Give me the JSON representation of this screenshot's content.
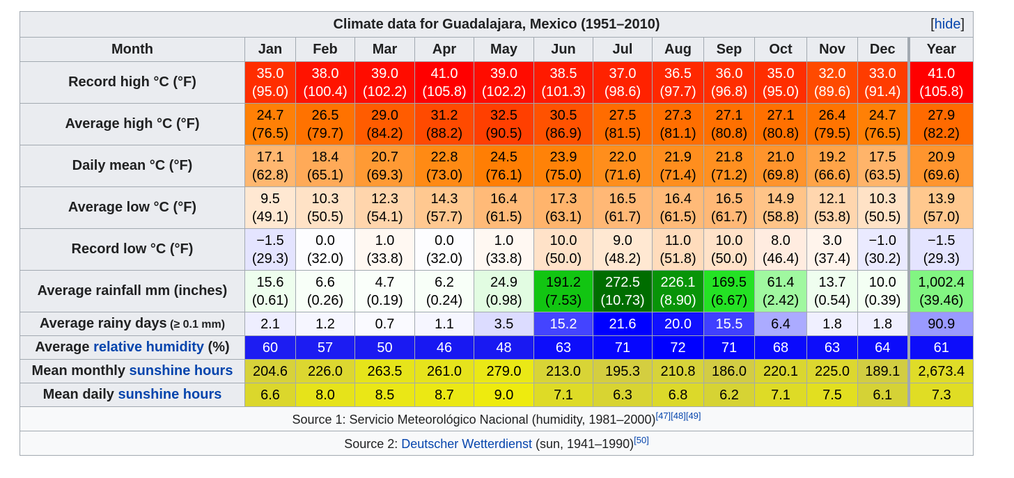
{
  "title": "Climate data for Guadalajara, Mexico (1951–2010)",
  "hide": {
    "open": "[",
    "label": "hide",
    "close": "]"
  },
  "header": {
    "label": "Month",
    "months": [
      "Jan",
      "Feb",
      "Mar",
      "Apr",
      "May",
      "Jun",
      "Jul",
      "Aug",
      "Sep",
      "Oct",
      "Nov",
      "Dec"
    ],
    "year": "Year"
  },
  "rows": [
    {
      "label": "Record high °C (°F)",
      "two_line": true,
      "values": [
        [
          "35.0",
          "(95.0)"
        ],
        [
          "38.0",
          "(100.4)"
        ],
        [
          "39.0",
          "(102.2)"
        ],
        [
          "41.0",
          "(105.8)"
        ],
        [
          "39.0",
          "(102.2)"
        ],
        [
          "38.5",
          "(101.3)"
        ],
        [
          "37.0",
          "(98.6)"
        ],
        [
          "36.5",
          "(97.7)"
        ],
        [
          "36.0",
          "(96.8)"
        ],
        [
          "35.0",
          "(95.0)"
        ],
        [
          "32.0",
          "(89.6)"
        ],
        [
          "33.0",
          "(91.4)"
        ]
      ],
      "year": [
        "41.0",
        "(105.8)"
      ],
      "bg": [
        "#ff2e00",
        "#ff1300",
        "#ff0c00",
        "#ff0000",
        "#ff0c00",
        "#ff1a00",
        "#ff2200",
        "#ff2800",
        "#ff2e00",
        "#ff2e00",
        "#ff4a00",
        "#ff3c00"
      ],
      "fg": [
        "#ffffff",
        "#ffffff",
        "#ffffff",
        "#ffffff",
        "#ffffff",
        "#ffffff",
        "#ffffff",
        "#ffffff",
        "#ffffff",
        "#ffffff",
        "#ffffff",
        "#ffffff"
      ],
      "year_bg": "#ff0000",
      "year_fg": "#ffffff"
    },
    {
      "label": "Average high °C (°F)",
      "two_line": true,
      "values": [
        [
          "24.7",
          "(76.5)"
        ],
        [
          "26.5",
          "(79.7)"
        ],
        [
          "29.0",
          "(84.2)"
        ],
        [
          "31.2",
          "(88.2)"
        ],
        [
          "32.5",
          "(90.5)"
        ],
        [
          "30.5",
          "(86.9)"
        ],
        [
          "27.5",
          "(81.5)"
        ],
        [
          "27.3",
          "(81.1)"
        ],
        [
          "27.1",
          "(80.8)"
        ],
        [
          "27.1",
          "(80.8)"
        ],
        [
          "26.4",
          "(79.5)"
        ],
        [
          "24.7",
          "(76.5)"
        ]
      ],
      "year": [
        "27.9",
        "(82.2)"
      ],
      "bg": [
        "#ff8006",
        "#ff7200",
        "#ff5c00",
        "#ff4a00",
        "#ff3f00",
        "#ff5200",
        "#ff6c00",
        "#ff6e00",
        "#ff7000",
        "#ff7000",
        "#ff7400",
        "#ff8006"
      ],
      "fg": [
        "#000000",
        "#000000",
        "#000000",
        "#000000",
        "#000000",
        "#000000",
        "#000000",
        "#000000",
        "#000000",
        "#000000",
        "#000000",
        "#000000"
      ],
      "year_bg": "#ff6a00",
      "year_fg": "#000000"
    },
    {
      "label": "Daily mean °C (°F)",
      "two_line": true,
      "values": [
        [
          "17.1",
          "(62.8)"
        ],
        [
          "18.4",
          "(65.1)"
        ],
        [
          "20.7",
          "(69.3)"
        ],
        [
          "22.8",
          "(73.0)"
        ],
        [
          "24.5",
          "(76.1)"
        ],
        [
          "23.9",
          "(75.0)"
        ],
        [
          "22.0",
          "(71.6)"
        ],
        [
          "21.9",
          "(71.4)"
        ],
        [
          "21.8",
          "(71.2)"
        ],
        [
          "21.0",
          "(69.8)"
        ],
        [
          "19.2",
          "(66.6)"
        ],
        [
          "17.5",
          "(63.5)"
        ]
      ],
      "year": [
        "20.9",
        "(69.6)"
      ],
      "bg": [
        "#ffb770",
        "#ffaa58",
        "#ff9a34",
        "#ff8a14",
        "#ff7e04",
        "#ff8208",
        "#ff8e1c",
        "#ff8e1e",
        "#ff9020",
        "#ff942c",
        "#ffa448",
        "#ffb46a"
      ],
      "fg": [
        "#000000",
        "#000000",
        "#000000",
        "#000000",
        "#000000",
        "#000000",
        "#000000",
        "#000000",
        "#000000",
        "#000000",
        "#000000",
        "#000000"
      ],
      "year_bg": "#ff952e",
      "year_fg": "#000000"
    },
    {
      "label": "Average low °C (°F)",
      "two_line": true,
      "values": [
        [
          "9.5",
          "(49.1)"
        ],
        [
          "10.3",
          "(50.5)"
        ],
        [
          "12.3",
          "(54.1)"
        ],
        [
          "14.3",
          "(57.7)"
        ],
        [
          "16.4",
          "(61.5)"
        ],
        [
          "17.3",
          "(63.1)"
        ],
        [
          "16.5",
          "(61.7)"
        ],
        [
          "16.4",
          "(61.5)"
        ],
        [
          "16.5",
          "(61.7)"
        ],
        [
          "14.9",
          "(58.8)"
        ],
        [
          "12.1",
          "(53.8)"
        ],
        [
          "10.3",
          "(50.5)"
        ]
      ],
      "year": [
        "13.9",
        "(57.0)"
      ],
      "bg": [
        "#ffe8d2",
        "#ffe2c6",
        "#ffd5ac",
        "#ffc890",
        "#ffba78",
        "#ffb46c",
        "#ffb876",
        "#ffba78",
        "#ffb876",
        "#ffc488",
        "#ffd6ae",
        "#ffe2c6"
      ],
      "fg": [
        "#000000",
        "#000000",
        "#000000",
        "#000000",
        "#000000",
        "#000000",
        "#000000",
        "#000000",
        "#000000",
        "#000000",
        "#000000",
        "#000000"
      ],
      "year_bg": "#ffc88e",
      "year_fg": "#000000"
    },
    {
      "label": "Record low °C (°F)",
      "two_line": true,
      "values": [
        [
          "−1.5",
          "(29.3)"
        ],
        [
          "0.0",
          "(32.0)"
        ],
        [
          "1.0",
          "(33.8)"
        ],
        [
          "0.0",
          "(32.0)"
        ],
        [
          "1.0",
          "(33.8)"
        ],
        [
          "10.0",
          "(50.0)"
        ],
        [
          "9.0",
          "(48.2)"
        ],
        [
          "11.0",
          "(51.8)"
        ],
        [
          "10.0",
          "(50.0)"
        ],
        [
          "8.0",
          "(46.4)"
        ],
        [
          "3.0",
          "(37.4)"
        ],
        [
          "−1.0",
          "(30.2)"
        ]
      ],
      "year": [
        "−1.5",
        "(29.3)"
      ],
      "bg": [
        "#e4e4ff",
        "#fdfdff",
        "#fff8f2",
        "#fdfdff",
        "#fff8f2",
        "#ffe2c8",
        "#ffe8d2",
        "#ffdcbc",
        "#ffe2c8",
        "#ffece0",
        "#fff4ec",
        "#eaeaff"
      ],
      "fg": [
        "#000000",
        "#000000",
        "#000000",
        "#000000",
        "#000000",
        "#000000",
        "#000000",
        "#000000",
        "#000000",
        "#000000",
        "#000000",
        "#000000"
      ],
      "year_bg": "#e4e4ff",
      "year_fg": "#000000"
    },
    {
      "label": "Average rainfall mm (inches)",
      "two_line": true,
      "values": [
        [
          "15.6",
          "(0.61)"
        ],
        [
          "6.6",
          "(0.26)"
        ],
        [
          "4.7",
          "(0.19)"
        ],
        [
          "6.2",
          "(0.24)"
        ],
        [
          "24.9",
          "(0.98)"
        ],
        [
          "191.2",
          "(7.53)"
        ],
        [
          "272.5",
          "(10.73)"
        ],
        [
          "226.1",
          "(8.90)"
        ],
        [
          "169.5",
          "(6.67)"
        ],
        [
          "61.4",
          "(2.42)"
        ],
        [
          "13.7",
          "(0.54)"
        ],
        [
          "10.0",
          "(0.39)"
        ]
      ],
      "year": [
        "1,002.4",
        "(39.46)"
      ],
      "bg": [
        "#eefeee",
        "#f8fff8",
        "#fafffa",
        "#f8fff8",
        "#e2fce2",
        "#12c512",
        "#006d00",
        "#089408",
        "#24e224",
        "#a0f8a0",
        "#effeef",
        "#f4fff4"
      ],
      "fg": [
        "#000000",
        "#000000",
        "#000000",
        "#000000",
        "#000000",
        "#000000",
        "#ffffff",
        "#ffffff",
        "#000000",
        "#000000",
        "#000000",
        "#000000"
      ],
      "year_bg": "#82f582",
      "year_fg": "#000000"
    },
    {
      "label_main": "Average rainy days",
      "label_small": " (≥ 0.1 mm)",
      "two_line": false,
      "values": [
        "2.1",
        "1.2",
        "0.7",
        "1.1",
        "3.5",
        "15.2",
        "21.6",
        "20.0",
        "15.5",
        "6.4",
        "1.8",
        "1.8"
      ],
      "year": "90.9",
      "bg": [
        "#eeeeff",
        "#f6f6ff",
        "#fafaff",
        "#f6f6ff",
        "#dcdcff",
        "#4444ff",
        "#0000ff",
        "#1111ff",
        "#4040ff",
        "#ababff",
        "#f0f0ff",
        "#f0f0ff"
      ],
      "fg": [
        "#000000",
        "#000000",
        "#000000",
        "#000000",
        "#000000",
        "#ffffff",
        "#ffffff",
        "#ffffff",
        "#ffffff",
        "#000000",
        "#000000",
        "#000000"
      ],
      "year_bg": "#9a9aff",
      "year_fg": "#000000"
    },
    {
      "label_pre": "Average ",
      "label_link": "relative humidity",
      "label_post": " (%)",
      "two_line": false,
      "values": [
        "60",
        "57",
        "50",
        "46",
        "48",
        "63",
        "71",
        "72",
        "71",
        "68",
        "63",
        "64"
      ],
      "year": "61",
      "bg": [
        "#1d1df2",
        "#1c1cf2",
        "#1a1af2",
        "#1818f2",
        "#1919f2",
        "#0d0dfa",
        "#0606fe",
        "#0000ff",
        "#0606fe",
        "#0a0afc",
        "#0d0dfa",
        "#0c0cfa"
      ],
      "fg": [
        "#ffffff",
        "#ffffff",
        "#ffffff",
        "#ffffff",
        "#ffffff",
        "#ffffff",
        "#ffffff",
        "#ffffff",
        "#ffffff",
        "#ffffff",
        "#ffffff",
        "#ffffff"
      ],
      "year_bg": "#0d0dfa",
      "year_fg": "#ffffff"
    },
    {
      "label_pre": "Mean monthly ",
      "label_link": "sunshine hours",
      "label_post": "",
      "two_line": false,
      "values": [
        "204.6",
        "226.0",
        "263.5",
        "261.0",
        "279.0",
        "213.0",
        "195.3",
        "210.8",
        "186.0",
        "220.1",
        "225.0",
        "189.1"
      ],
      "year": "2,673.4",
      "bg": [
        "#d7d23a",
        "#dcd730",
        "#e6e41a",
        "#e6e31c",
        "#eae816",
        "#d8d436",
        "#d4ce40",
        "#d7d33a",
        "#d2cc44",
        "#dad630",
        "#dcd72f",
        "#d2cd42"
      ],
      "fg": [
        "#000000",
        "#000000",
        "#000000",
        "#000000",
        "#000000",
        "#000000",
        "#000000",
        "#000000",
        "#000000",
        "#000000",
        "#000000",
        "#000000"
      ],
      "year_bg": "#dfdc28",
      "year_fg": "#000000"
    },
    {
      "label_pre": "Mean daily ",
      "label_link": "sunshine hours",
      "label_post": "",
      "two_line": false,
      "values": [
        "6.6",
        "8.0",
        "8.5",
        "8.7",
        "9.0",
        "7.1",
        "6.3",
        "6.8",
        "6.2",
        "7.1",
        "7.5",
        "6.1"
      ],
      "year": "7.3",
      "bg": [
        "#dbd72c",
        "#e6e31a",
        "#eae716",
        "#ebe814",
        "#eeeb0e",
        "#dedb26",
        "#d8d432",
        "#dcd92a",
        "#d6d334",
        "#dedb26",
        "#e2df20",
        "#d5d236"
      ],
      "fg": [
        "#000000",
        "#000000",
        "#000000",
        "#000000",
        "#000000",
        "#000000",
        "#000000",
        "#000000",
        "#000000",
        "#000000",
        "#000000",
        "#000000"
      ],
      "year_bg": "#e0dd24",
      "year_fg": "#000000"
    }
  ],
  "source1": {
    "text": "Source 1: Servicio Meteorológico Nacional (humidity, 1981–2000)",
    "refs": [
      "[47]",
      "[48]",
      "[49]"
    ]
  },
  "source2": {
    "prefix": "Source 2: ",
    "link": "Deutscher Wetterdienst",
    "suffix": " (sun, 1941–1990)",
    "refs": [
      "[50]"
    ]
  }
}
